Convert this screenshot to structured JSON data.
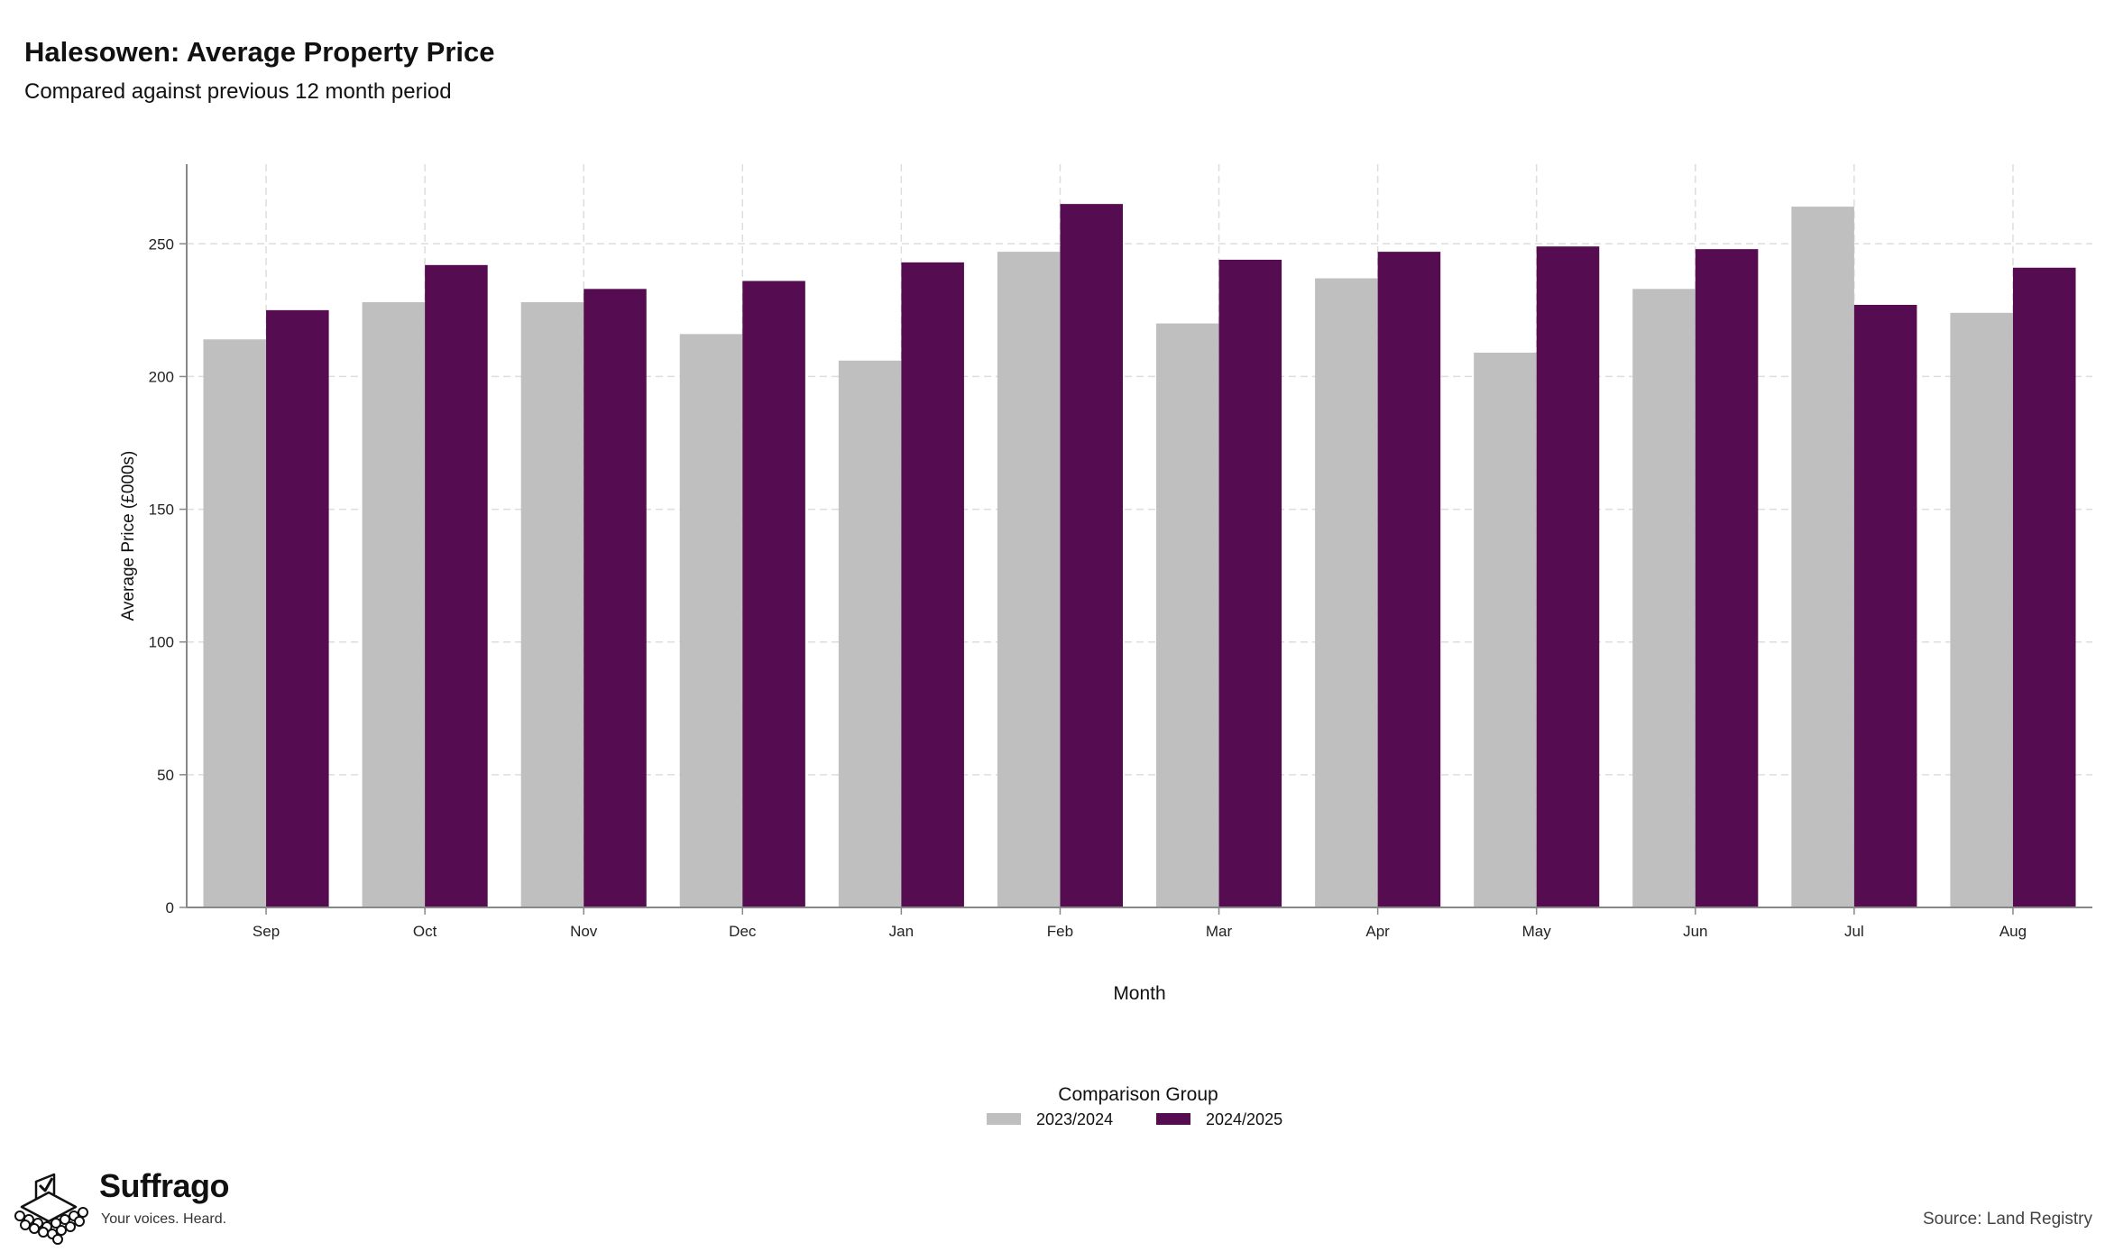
{
  "header": {
    "title": "Halesowen: Average Property Price",
    "subtitle": "Compared against previous 12 month period"
  },
  "chart_data": {
    "type": "bar",
    "title": "Halesowen: Average Property Price",
    "subtitle": "Compared against previous 12 month period",
    "xlabel": "Month",
    "ylabel": "Average Price (£000s)",
    "categories": [
      "Sep",
      "Oct",
      "Nov",
      "Dec",
      "Jan",
      "Feb",
      "Mar",
      "Apr",
      "May",
      "Jun",
      "Jul",
      "Aug"
    ],
    "series": [
      {
        "name": "2023/2024",
        "color": "#bfbfbf",
        "values": [
          214,
          228,
          228,
          216,
          206,
          247,
          220,
          237,
          209,
          233,
          264,
          224
        ]
      },
      {
        "name": "2024/2025",
        "color": "#560c50",
        "values": [
          225,
          242,
          233,
          236,
          243,
          265,
          244,
          247,
          249,
          248,
          227,
          241
        ]
      }
    ],
    "ylim": [
      0,
      280
    ],
    "yticks": [
      0,
      50,
      100,
      150,
      200,
      250
    ],
    "grid": true,
    "legend": {
      "title": "Comparison Group",
      "position": "bottom"
    }
  },
  "footer": {
    "brand_name": "Suffrago",
    "brand_tagline": "Your voices. Heard.",
    "brand_logo_icon": "ballot-box-icon",
    "source": "Source: Land Registry"
  }
}
